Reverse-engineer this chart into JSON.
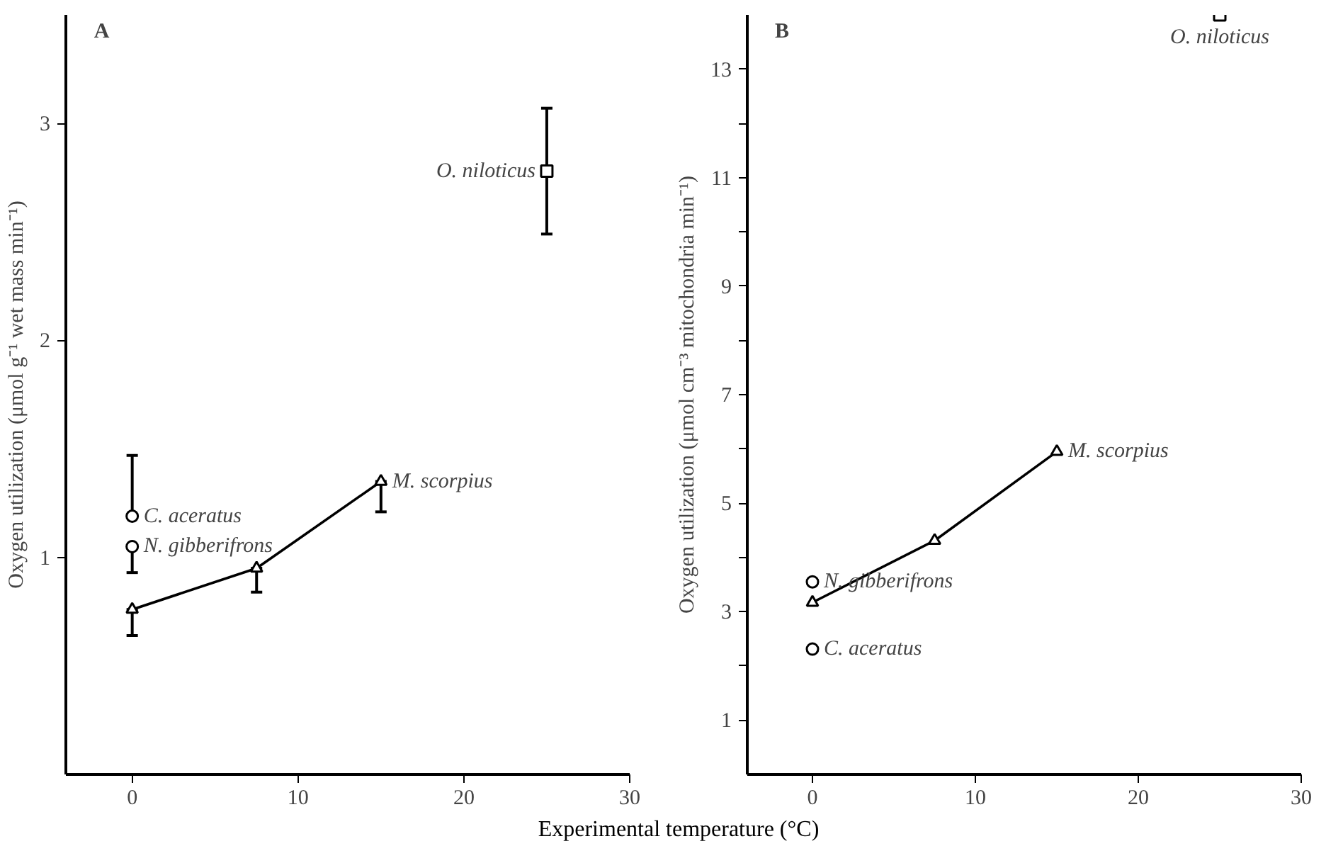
{
  "chart_data": [
    {
      "type": "scatter",
      "title": "A",
      "xlabel": "Experimental temperature (°C)",
      "ylabel": "Oxygen utilization (μmol g⁻¹ wet mass min⁻¹)",
      "xlim": [
        -4,
        30
      ],
      "ylim": [
        0,
        3.5
      ],
      "xticks": [
        0,
        10,
        20,
        30
      ],
      "yticks": [
        1,
        2,
        3
      ],
      "grid": false,
      "legend": false,
      "series": [
        {
          "name": "O. niloticus",
          "color": "#000000",
          "marker": "square",
          "x": [
            25
          ],
          "values": [
            2.78
          ],
          "errors": [
            [
              2.49,
              3.07
            ]
          ]
        },
        {
          "name": "C. aceratus",
          "color": "#000000",
          "marker": "circle",
          "x": [
            0
          ],
          "values": [
            1.19
          ],
          "errors": [
            [
              1.19,
              1.47
            ]
          ]
        },
        {
          "name": "N. gibberifrons",
          "color": "#000000",
          "marker": "circle",
          "x": [
            0
          ],
          "values": [
            1.05
          ],
          "errors": [
            [
              0.93,
              1.05
            ]
          ]
        },
        {
          "name": "M. scorpius",
          "type": "line",
          "color": "#000000",
          "marker": "triangle",
          "x": [
            0,
            7.5,
            15
          ],
          "values": [
            0.76,
            0.95,
            1.35
          ],
          "errors": [
            [
              0.64,
              0.76
            ],
            [
              0.84,
              0.95
            ],
            [
              1.21,
              1.35
            ]
          ]
        }
      ]
    },
    {
      "type": "scatter",
      "title": "B",
      "ylabel": "Oxygen utilization (μmol cm⁻³ mitochondria min⁻¹)",
      "xlim": [
        -4,
        30
      ],
      "ylim": [
        0,
        14
      ],
      "xticks": [
        0,
        10,
        20,
        30
      ],
      "yticks": [
        1,
        {
          "value": 2,
          "label": null
        },
        3,
        {
          "value": 4,
          "label": null
        },
        5,
        {
          "value": 6,
          "label": null
        },
        7,
        {
          "value": 8,
          "label": null
        },
        9,
        {
          "value": 10,
          "label": null
        },
        11,
        {
          "value": 12,
          "label": null
        },
        13
      ],
      "grid": false,
      "legend": false,
      "series": [
        {
          "name": "O. niloticus",
          "color": "#000000",
          "marker": "square",
          "x": [
            25
          ],
          "values": [
            14.0
          ]
        },
        {
          "name": "C. aceratus",
          "color": "#000000",
          "marker": "circle",
          "x": [
            0
          ],
          "values": [
            2.31
          ]
        },
        {
          "name": "N. gibberifrons",
          "color": "#000000",
          "marker": "circle",
          "x": [
            0
          ],
          "values": [
            3.55
          ]
        },
        {
          "name": "M. scorpius",
          "type": "line",
          "color": "#000000",
          "marker": "triangle",
          "x": [
            0,
            7.5,
            15
          ],
          "values": [
            3.17,
            4.31,
            5.95
          ]
        }
      ]
    }
  ]
}
